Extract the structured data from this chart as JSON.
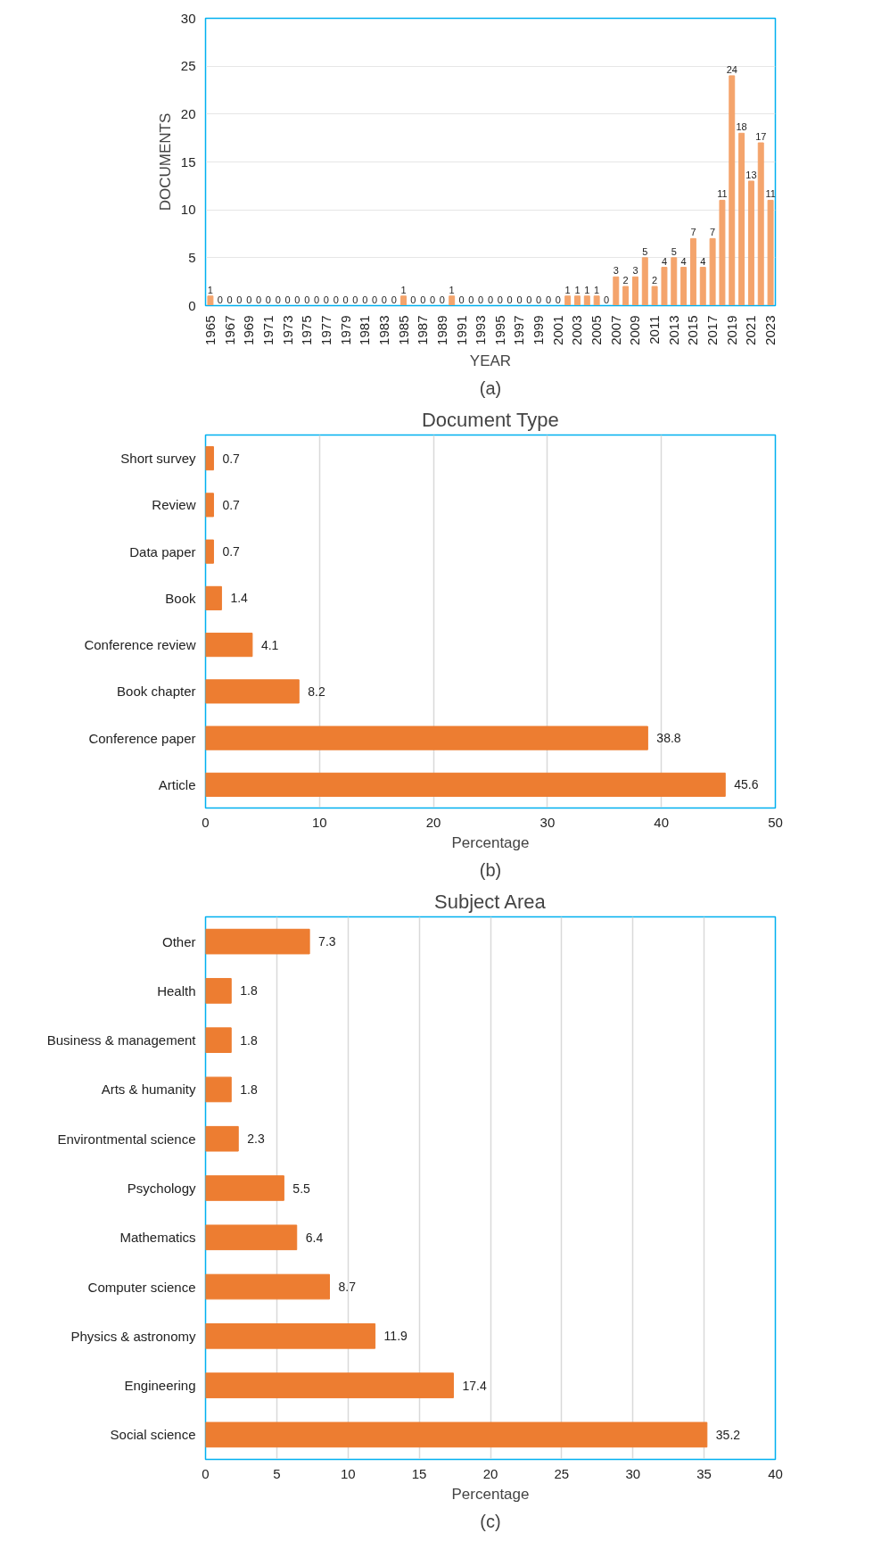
{
  "chart_data": [
    {
      "type": "bar",
      "xlabel": "YEAR",
      "ylabel": "DOCUMENTS",
      "annotations": [
        "(a)"
      ],
      "x": [
        1965,
        1966,
        1967,
        1968,
        1969,
        1970,
        1971,
        1972,
        1973,
        1974,
        1975,
        1976,
        1977,
        1978,
        1979,
        1980,
        1981,
        1982,
        1983,
        1984,
        1985,
        1986,
        1987,
        1988,
        1989,
        1990,
        1991,
        1992,
        1993,
        1994,
        1995,
        1996,
        1997,
        1998,
        1999,
        2000,
        2001,
        2002,
        2003,
        2004,
        2005,
        2006,
        2007,
        2008,
        2009,
        2010,
        2011,
        2012,
        2013,
        2014,
        2015,
        2016,
        2017,
        2018,
        2019,
        2020,
        2021,
        2022,
        2023
      ],
      "values": [
        1,
        0,
        0,
        0,
        0,
        0,
        0,
        0,
        0,
        0,
        0,
        0,
        0,
        0,
        0,
        0,
        0,
        0,
        0,
        0,
        1,
        0,
        0,
        0,
        0,
        1,
        0,
        0,
        0,
        0,
        0,
        0,
        0,
        0,
        0,
        0,
        0,
        1,
        1,
        1,
        1,
        0,
        3,
        2,
        3,
        5,
        2,
        4,
        5,
        4,
        7,
        4,
        7,
        11,
        24,
        18,
        13,
        17,
        11
      ],
      "color": "#f4a46c",
      "xlim": [
        1964.5,
        2023.5
      ],
      "xticks": [
        1965,
        1967,
        1969,
        1971,
        1973,
        1975,
        1977,
        1979,
        1981,
        1983,
        1985,
        1987,
        1989,
        1991,
        1993,
        1995,
        1997,
        1999,
        2001,
        2003,
        2005,
        2007,
        2009,
        2011,
        2013,
        2015,
        2017,
        2019,
        2021,
        2023
      ],
      "ylim": [
        0,
        30
      ],
      "yticks": [
        0,
        5,
        10,
        15,
        20,
        25,
        30
      ],
      "grid": "y",
      "data_labels": true
    },
    {
      "type": "bar",
      "orientation": "horizontal",
      "title": "Document Type",
      "xlabel": "Percentage",
      "annotations": [
        "(b)"
      ],
      "categories": [
        "Short survey",
        "Review",
        "Data paper",
        "Book",
        "Conference review",
        "Book chapter",
        "Conference paper",
        "Article"
      ],
      "values": [
        0.7,
        0.7,
        0.7,
        1.4,
        4.1,
        8.2,
        38.8,
        45.6
      ],
      "color": "#ed7d31",
      "xlim": [
        0,
        50
      ],
      "xticks": [
        0,
        10,
        20,
        30,
        40,
        50
      ],
      "grid": "x",
      "data_labels": true
    },
    {
      "type": "bar",
      "orientation": "horizontal",
      "title": "Subject Area",
      "xlabel": "Percentage",
      "annotations": [
        "(c)"
      ],
      "categories": [
        "Other",
        "Health",
        "Business & management",
        "Arts & humanity",
        "Environtmental science",
        "Psychology",
        "Mathematics",
        "Computer science",
        "Physics & astronomy",
        "Engineering",
        "Social science"
      ],
      "values": [
        7.3,
        1.8,
        1.8,
        1.8,
        2.3,
        5.5,
        6.4,
        8.7,
        11.9,
        17.4,
        35.2
      ],
      "color": "#ed7d31",
      "xlim": [
        0,
        40
      ],
      "xticks": [
        0,
        5,
        10,
        15,
        20,
        25,
        30,
        35,
        40
      ],
      "grid": "x",
      "data_labels": true
    }
  ]
}
